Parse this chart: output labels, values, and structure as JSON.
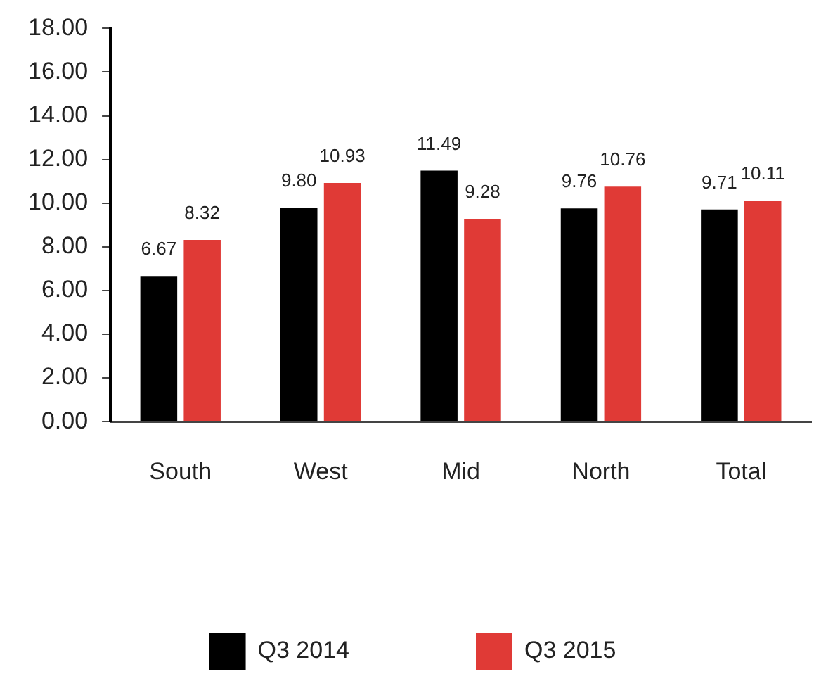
{
  "chart_data": {
    "type": "bar",
    "categories": [
      "South",
      "West",
      "Mid",
      "North",
      "Total"
    ],
    "series": [
      {
        "name": "Q3 2014",
        "color": "#000000",
        "values": [
          6.67,
          9.8,
          11.49,
          9.76,
          9.71
        ],
        "value_labels": [
          "6.67",
          "9.80",
          "11.49",
          "9.76",
          "9.71"
        ]
      },
      {
        "name": "Q3 2015",
        "color": "#e03a36",
        "values": [
          8.32,
          10.93,
          9.28,
          10.76,
          10.11
        ],
        "value_labels": [
          "8.32",
          "10.93",
          "9.28",
          "10.76",
          "10.11"
        ]
      }
    ],
    "ylim": [
      0,
      18
    ],
    "yticks": [
      {
        "value": 0,
        "label": "0.00"
      },
      {
        "value": 2,
        "label": "2.00"
      },
      {
        "value": 4,
        "label": "4.00"
      },
      {
        "value": 6,
        "label": "6.00"
      },
      {
        "value": 8,
        "label": "8.00"
      },
      {
        "value": 10,
        "label": "10.00"
      },
      {
        "value": 12,
        "label": "12.00"
      },
      {
        "value": 14,
        "label": "14.00"
      },
      {
        "value": 16,
        "label": "16.00"
      },
      {
        "value": 18,
        "label": "18.00"
      }
    ],
    "grid": false,
    "legend": "bottom"
  }
}
